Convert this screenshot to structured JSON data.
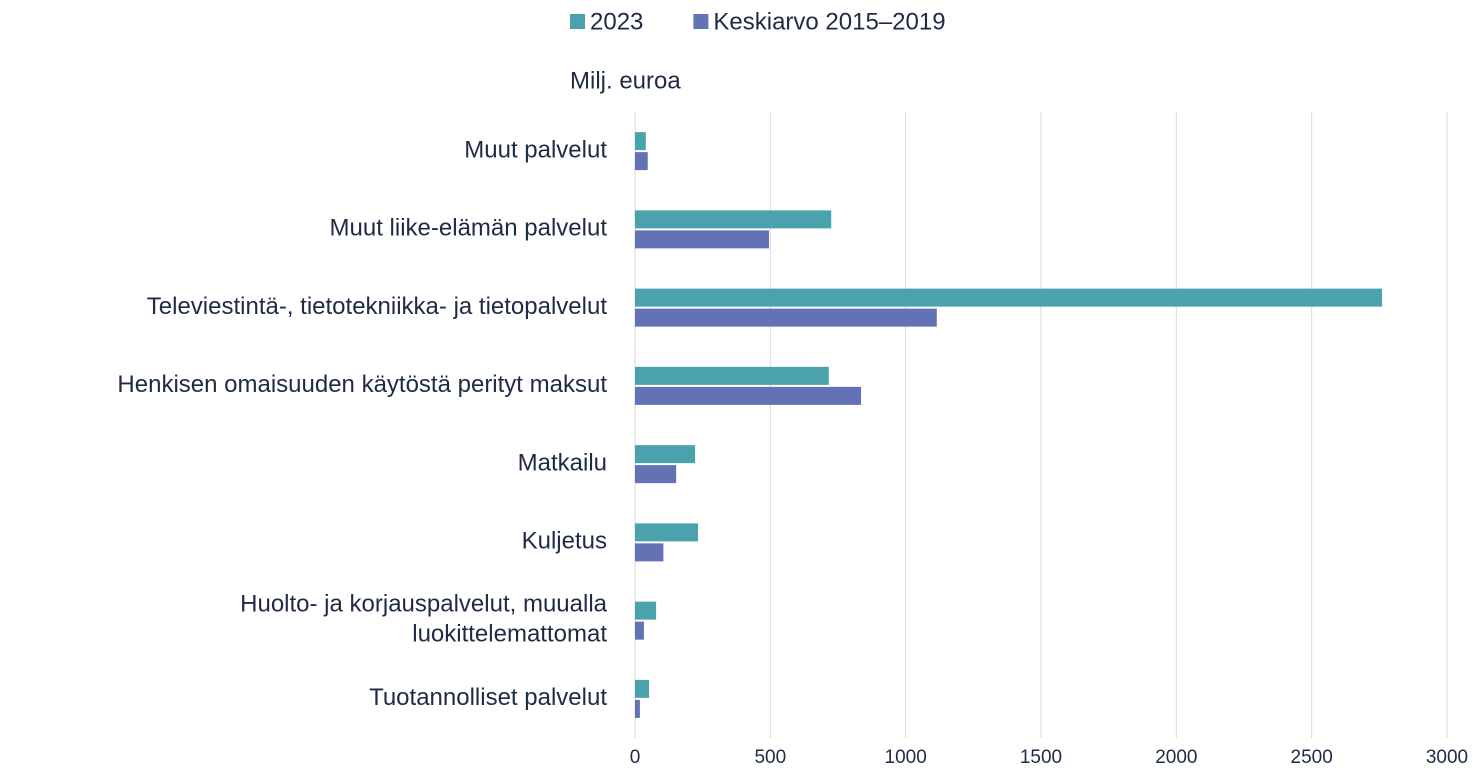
{
  "chart_data": {
    "type": "hbar",
    "y_label": "Milj. euroa",
    "categories": [
      "Muut palvelut",
      "Muut liike-elämän palvelut",
      "Televiestintä-, tietotekniikka- ja tietopalvelut",
      "Henkisen omaisuuden käytöstä perityt maksut",
      "Matkailu",
      "Kuljetus",
      "Huolto- ja korjauspalvelut, muualla\nluokittelemattomat",
      "Tuotannolliset palvelut"
    ],
    "series": [
      {
        "name": "2023",
        "color": "#4aa3ac",
        "values": [
          40,
          725,
          2760,
          716,
          222,
          233,
          78,
          52
        ]
      },
      {
        "name": "Keskiarvo 2015–2019",
        "color": "#6272b5",
        "values": [
          47,
          495,
          1115,
          835,
          152,
          105,
          33,
          18
        ]
      }
    ],
    "xlim": [
      0,
      3000
    ],
    "xticks": [
      0,
      500,
      1000,
      1500,
      2000,
      2500,
      3000
    ],
    "grid": true,
    "legend": "top"
  }
}
